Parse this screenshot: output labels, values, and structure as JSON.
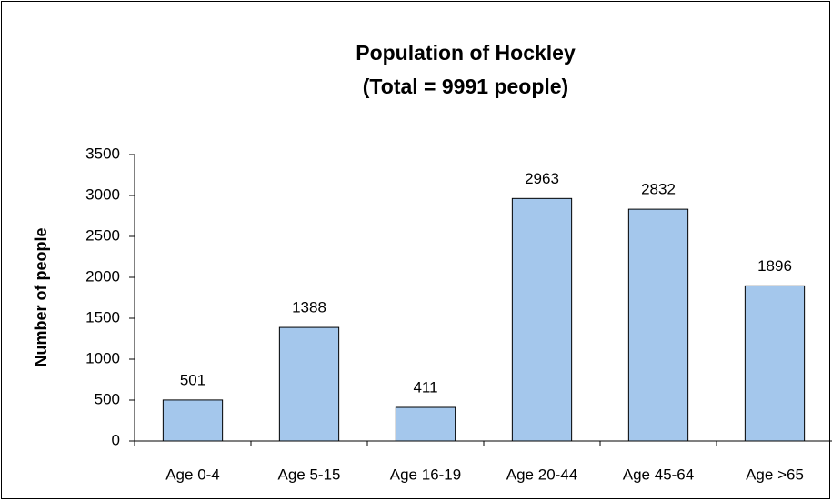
{
  "chart_data": {
    "type": "bar",
    "title": "Population of Hockley",
    "subtitle": "(Total = 9991 people)",
    "y_label": "Number of people",
    "categories": [
      "Age 0-4",
      "Age 5-15",
      "Age 16-19",
      "Age 20-44",
      "Age 45-64",
      "Age >65"
    ],
    "values": [
      501,
      1388,
      411,
      2963,
      2832,
      1896
    ],
    "color": "#a4c7ec",
    "ylim": [
      0,
      3500
    ],
    "yticks": [
      0,
      500,
      1000,
      1500,
      2000,
      2500,
      3000,
      3500
    ],
    "grid": false
  }
}
